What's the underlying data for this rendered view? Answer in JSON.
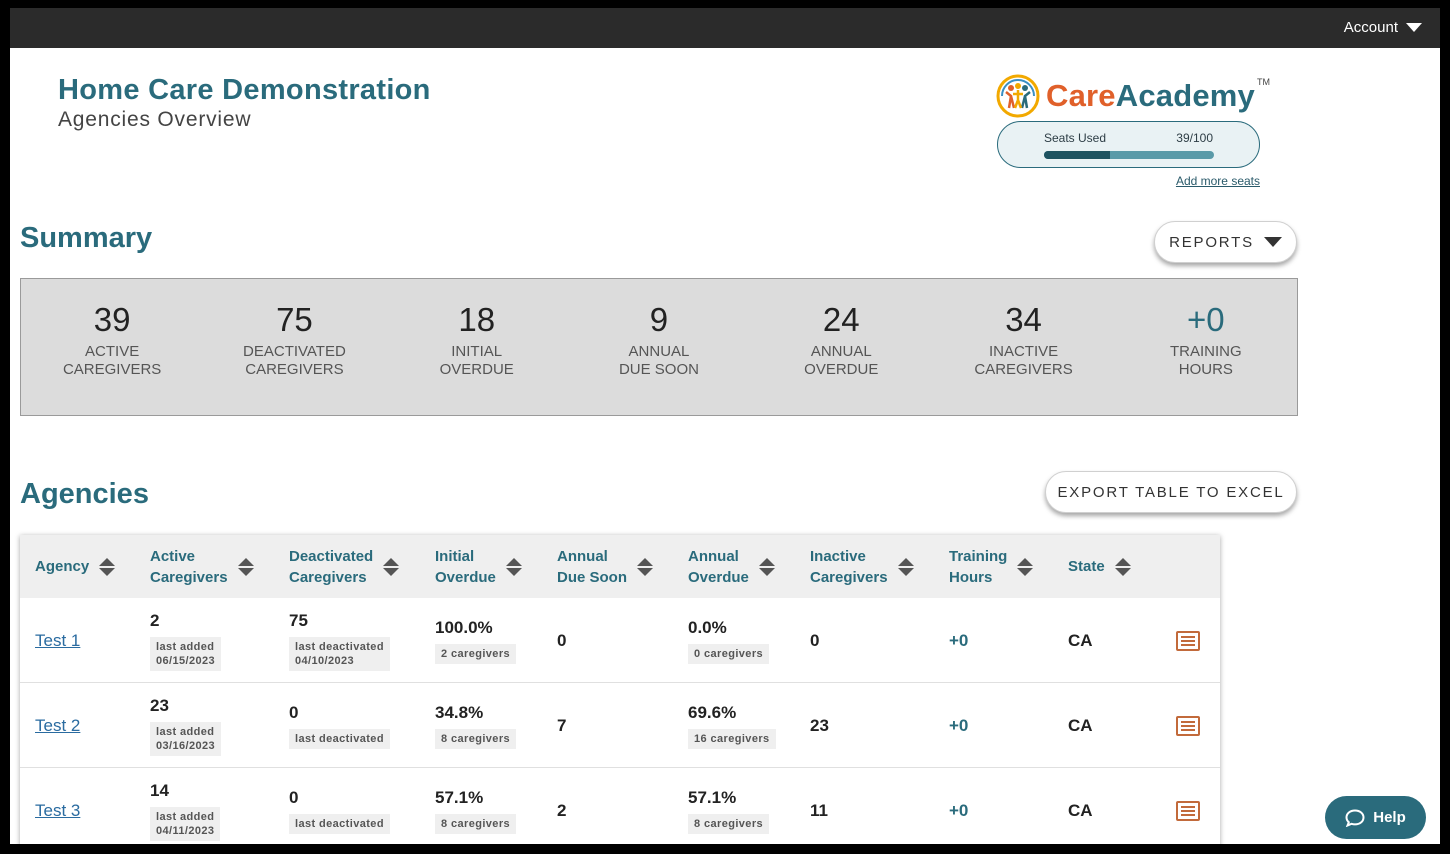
{
  "topbar": {
    "account_label": "Account"
  },
  "header": {
    "org_title": "Home Care Demonstration",
    "subtitle": "Agencies Overview"
  },
  "logo": {
    "care": "Care",
    "academy": "Academy",
    "tm": "TM"
  },
  "seats": {
    "label": "Seats Used",
    "count": "39/100",
    "used": 39,
    "total": 100,
    "add_link": "Add more seats"
  },
  "summary": {
    "title": "Summary",
    "reports_label": "REPORTS",
    "stats": [
      {
        "value": "39",
        "label": "ACTIVE\nCAREGIVERS"
      },
      {
        "value": "75",
        "label": "DEACTIVATED\nCAREGIVERS"
      },
      {
        "value": "18",
        "label": "INITIAL\nOVERDUE"
      },
      {
        "value": "9",
        "label": "ANNUAL\nDUE SOON"
      },
      {
        "value": "24",
        "label": "ANNUAL\nOVERDUE"
      },
      {
        "value": "34",
        "label": "INACTIVE\nCAREGIVERS"
      },
      {
        "value": "+0",
        "label": "TRAINING\nHOURS"
      }
    ]
  },
  "agencies": {
    "title": "Agencies",
    "export_label": "EXPORT TABLE TO EXCEL",
    "columns": [
      "Agency",
      "Active\nCaregivers",
      "Deactivated\nCaregivers",
      "Initial\nOverdue",
      "Annual\nDue Soon",
      "Annual\nOverdue",
      "Inactive\nCaregivers",
      "Training\nHours",
      "State"
    ],
    "rows": [
      {
        "agency": "Test 1",
        "active": "2",
        "active_note": "last added\n06/15/2023",
        "deactivated": "75",
        "deactivated_note": "last deactivated\n04/10/2023",
        "initial_overdue": "100.0%",
        "initial_note": "2 caregivers",
        "annual_due_soon": "0",
        "annual_overdue": "0.0%",
        "annual_note": "0 caregivers",
        "inactive": "0",
        "training_hours": "+0",
        "state": "CA"
      },
      {
        "agency": "Test 2",
        "active": "23",
        "active_note": "last added\n03/16/2023",
        "deactivated": "0",
        "deactivated_note": "last deactivated",
        "initial_overdue": "34.8%",
        "initial_note": "8 caregivers",
        "annual_due_soon": "7",
        "annual_overdue": "69.6%",
        "annual_note": "16 caregivers",
        "inactive": "23",
        "training_hours": "+0",
        "state": "CA"
      },
      {
        "agency": "Test 3",
        "active": "14",
        "active_note": "last added\n04/11/2023",
        "deactivated": "0",
        "deactivated_note": "last deactivated",
        "initial_overdue": "57.1%",
        "initial_note": "8 caregivers",
        "annual_due_soon": "2",
        "annual_overdue": "57.1%",
        "annual_note": "8 caregivers",
        "inactive": "11",
        "training_hours": "+0",
        "state": "CA"
      }
    ]
  },
  "help": {
    "label": "Help"
  }
}
